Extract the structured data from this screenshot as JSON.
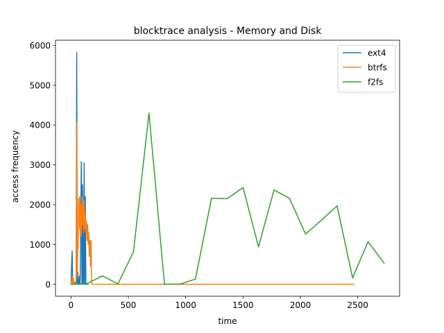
{
  "chart_data": {
    "type": "line",
    "title": "blocktrace analysis - Memory and Disk",
    "xlabel": "time",
    "ylabel": "access frequency",
    "xlim": [
      -135,
      2865
    ],
    "ylim": [
      -300,
      6130
    ],
    "xticks": [
      0,
      500,
      1000,
      1500,
      2000,
      2500
    ],
    "yticks": [
      0,
      1000,
      2000,
      3000,
      4000,
      5000,
      6000
    ],
    "grid": false,
    "legend_position": "top-right",
    "series": [
      {
        "name": "ext4",
        "color": "#1f77b4",
        "points": [
          [
            0,
            0
          ],
          [
            10,
            840
          ],
          [
            15,
            0
          ],
          [
            20,
            100
          ],
          [
            30,
            0
          ],
          [
            40,
            0
          ],
          [
            45,
            60
          ],
          [
            50,
            5820
          ],
          [
            55,
            0
          ],
          [
            60,
            300
          ],
          [
            65,
            0
          ],
          [
            70,
            0
          ],
          [
            75,
            200
          ],
          [
            80,
            0
          ],
          [
            90,
            3080
          ],
          [
            95,
            0
          ],
          [
            100,
            2500
          ],
          [
            105,
            0
          ],
          [
            110,
            0
          ],
          [
            115,
            3050
          ],
          [
            120,
            0
          ],
          [
            125,
            2200
          ],
          [
            130,
            0
          ],
          [
            140,
            0
          ],
          [
            150,
            0
          ]
        ]
      },
      {
        "name": "btrfs",
        "color": "#ff7f0e",
        "points": [
          [
            0,
            0
          ],
          [
            10,
            200
          ],
          [
            15,
            0
          ],
          [
            20,
            150
          ],
          [
            30,
            0
          ],
          [
            45,
            100
          ],
          [
            50,
            4080
          ],
          [
            55,
            200
          ],
          [
            60,
            1200
          ],
          [
            63,
            900
          ],
          [
            66,
            2150
          ],
          [
            70,
            1400
          ],
          [
            75,
            2200
          ],
          [
            80,
            1300
          ],
          [
            85,
            2000
          ],
          [
            90,
            1200
          ],
          [
            95,
            2200
          ],
          [
            100,
            1500
          ],
          [
            105,
            2000
          ],
          [
            110,
            1300
          ],
          [
            115,
            2100
          ],
          [
            120,
            1400
          ],
          [
            125,
            1800
          ],
          [
            130,
            1300
          ],
          [
            135,
            1600
          ],
          [
            140,
            1100
          ],
          [
            145,
            1500
          ],
          [
            150,
            1000
          ],
          [
            155,
            1300
          ],
          [
            160,
            700
          ],
          [
            165,
            1100
          ],
          [
            170,
            450
          ],
          [
            175,
            1100
          ],
          [
            180,
            0
          ],
          [
            2470,
            0
          ]
        ]
      },
      {
        "name": "f2fs",
        "color": "#2ca02c",
        "points": [
          [
            0,
            0
          ],
          [
            135,
            10
          ],
          [
            275,
            210
          ],
          [
            410,
            10
          ],
          [
            545,
            820
          ],
          [
            680,
            4300
          ],
          [
            815,
            5
          ],
          [
            950,
            5
          ],
          [
            1085,
            130
          ],
          [
            1225,
            2160
          ],
          [
            1360,
            2150
          ],
          [
            1500,
            2430
          ],
          [
            1635,
            940
          ],
          [
            1770,
            2370
          ],
          [
            1905,
            2160
          ],
          [
            2045,
            1260
          ],
          [
            2180,
            1600
          ],
          [
            2320,
            1970
          ],
          [
            2455,
            160
          ],
          [
            2590,
            1070
          ],
          [
            2730,
            530
          ]
        ]
      }
    ]
  }
}
